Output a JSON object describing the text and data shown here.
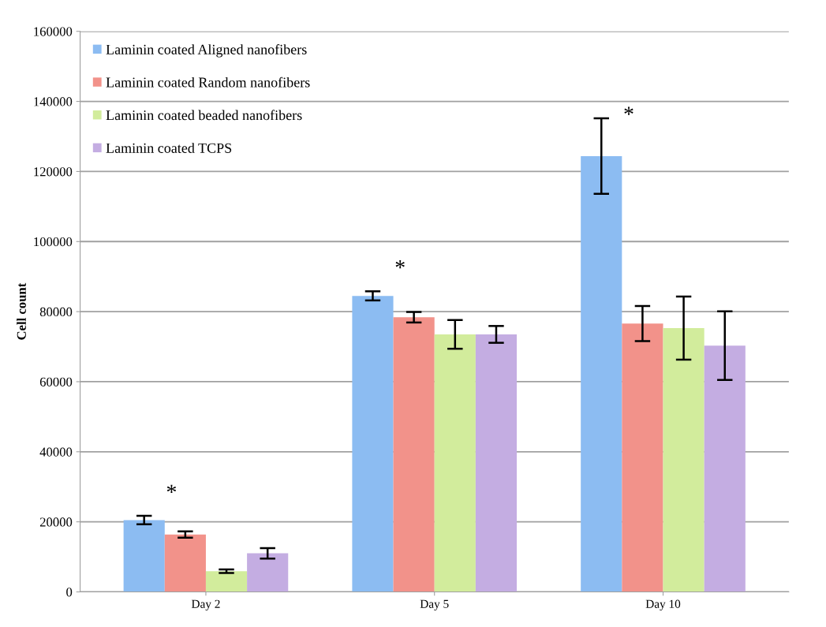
{
  "chart_data": {
    "type": "bar",
    "ylabel": "Cell count",
    "categories": [
      "Day 2",
      "Day 5",
      "Day 10"
    ],
    "series": [
      {
        "name": "Laminin coated Aligned nanofibers",
        "color": "#8cbcf2",
        "values": [
          20500,
          84500,
          124400
        ],
        "errors": [
          1200,
          1300,
          10800
        ]
      },
      {
        "name": "Laminin coated Random nanofibers",
        "color": "#f2928a",
        "values": [
          16400,
          78400,
          76600
        ],
        "errors": [
          900,
          1500,
          5000
        ]
      },
      {
        "name": "Laminin coated beaded nanofibers",
        "color": "#d2ec9c",
        "values": [
          5900,
          73500,
          75300
        ],
        "errors": [
          500,
          4100,
          9000
        ]
      },
      {
        "name": "Laminin coated TCPS",
        "color": "#c4ade2",
        "values": [
          11000,
          73500,
          70300
        ],
        "errors": [
          1500,
          2400,
          9800
        ]
      }
    ],
    "ylim": [
      0,
      160000
    ],
    "yticks": [
      0,
      20000,
      40000,
      60000,
      80000,
      100000,
      120000,
      140000,
      160000
    ],
    "grid": "y",
    "legend": "top left",
    "annotations": [
      "*",
      "*",
      "*"
    ]
  }
}
